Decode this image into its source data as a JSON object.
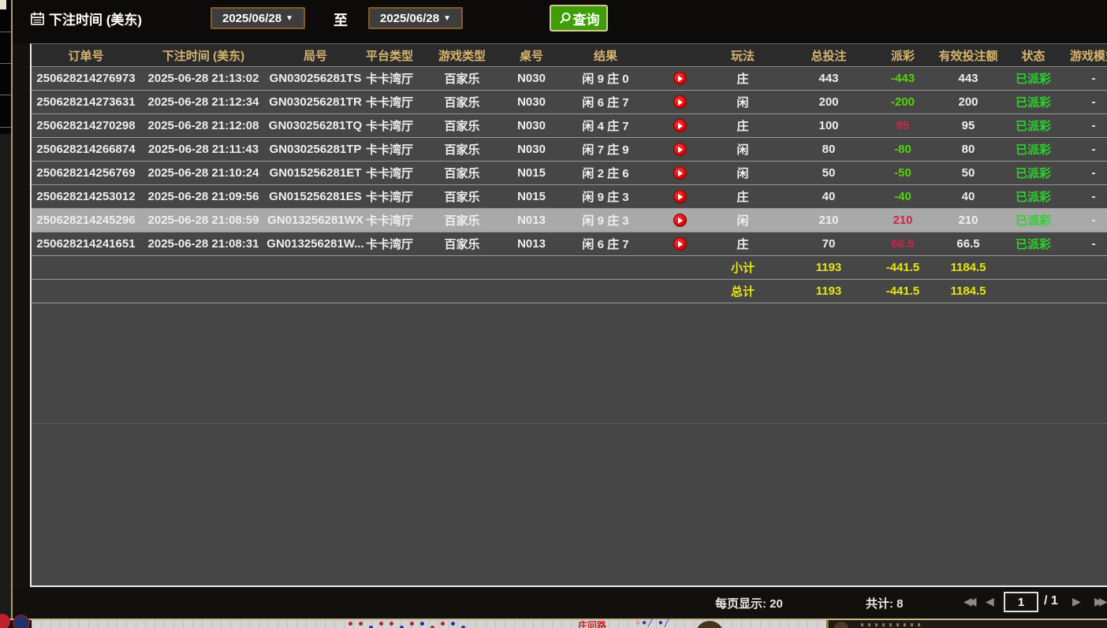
{
  "filter_bar": {
    "title": "下注时间 (美东)",
    "date_from": "2025/06/28",
    "date_to": "2025/06/28",
    "to_label": "至",
    "query_label": "查询"
  },
  "table": {
    "columns": [
      "订单号",
      "下注时间 (美东)",
      "局号",
      "平台类型",
      "游戏类型",
      "桌号",
      "结果",
      "",
      "玩法",
      "总投注",
      "派彩",
      "有效投注额",
      "状态",
      "游戏模式"
    ],
    "rows": [
      {
        "order_id": "250628214276973",
        "bet_time": "2025-06-28 21:13:02",
        "round_id": "GN030256281TS",
        "platform": "卡卡湾厅",
        "game_type": "百家乐",
        "table_no": "N030",
        "result": "闲 9 庄 0",
        "play": "庄",
        "total_bet": "443",
        "payout": "-443",
        "payout_sign": "neg",
        "valid_bet": "443",
        "status": "已派彩",
        "game_mode": "-",
        "selected": false
      },
      {
        "order_id": "250628214273631",
        "bet_time": "2025-06-28 21:12:34",
        "round_id": "GN030256281TR",
        "platform": "卡卡湾厅",
        "game_type": "百家乐",
        "table_no": "N030",
        "result": "闲 6 庄 7",
        "play": "闲",
        "total_bet": "200",
        "payout": "-200",
        "payout_sign": "neg",
        "valid_bet": "200",
        "status": "已派彩",
        "game_mode": "-",
        "selected": false
      },
      {
        "order_id": "250628214270298",
        "bet_time": "2025-06-28 21:12:08",
        "round_id": "GN030256281TQ",
        "platform": "卡卡湾厅",
        "game_type": "百家乐",
        "table_no": "N030",
        "result": "闲 4 庄 7",
        "play": "庄",
        "total_bet": "100",
        "payout": "95",
        "payout_sign": "pos",
        "valid_bet": "95",
        "status": "已派彩",
        "game_mode": "-",
        "selected": false
      },
      {
        "order_id": "250628214266874",
        "bet_time": "2025-06-28 21:11:43",
        "round_id": "GN030256281TP",
        "platform": "卡卡湾厅",
        "game_type": "百家乐",
        "table_no": "N030",
        "result": "闲 7 庄 9",
        "play": "闲",
        "total_bet": "80",
        "payout": "-80",
        "payout_sign": "neg",
        "valid_bet": "80",
        "status": "已派彩",
        "game_mode": "-",
        "selected": false
      },
      {
        "order_id": "250628214256769",
        "bet_time": "2025-06-28 21:10:24",
        "round_id": "GN015256281ET",
        "platform": "卡卡湾厅",
        "game_type": "百家乐",
        "table_no": "N015",
        "result": "闲 2 庄 6",
        "play": "闲",
        "total_bet": "50",
        "payout": "-50",
        "payout_sign": "neg",
        "valid_bet": "50",
        "status": "已派彩",
        "game_mode": "-",
        "selected": false
      },
      {
        "order_id": "250628214253012",
        "bet_time": "2025-06-28 21:09:56",
        "round_id": "GN015256281ES",
        "platform": "卡卡湾厅",
        "game_type": "百家乐",
        "table_no": "N015",
        "result": "闲 9 庄 3",
        "play": "庄",
        "total_bet": "40",
        "payout": "-40",
        "payout_sign": "neg",
        "valid_bet": "40",
        "status": "已派彩",
        "game_mode": "-",
        "selected": false
      },
      {
        "order_id": "250628214245296",
        "bet_time": "2025-06-28 21:08:59",
        "round_id": "GN013256281WX",
        "platform": "卡卡湾厅",
        "game_type": "百家乐",
        "table_no": "N013",
        "result": "闲 9 庄 3",
        "play": "闲",
        "total_bet": "210",
        "payout": "210",
        "payout_sign": "pos",
        "valid_bet": "210",
        "status": "已派彩",
        "game_mode": "-",
        "selected": true
      },
      {
        "order_id": "250628214241651",
        "bet_time": "2025-06-28 21:08:31",
        "round_id": "GN013256281W...",
        "platform": "卡卡湾厅",
        "game_type": "百家乐",
        "table_no": "N013",
        "result": "闲 6 庄 7",
        "play": "庄",
        "total_bet": "70",
        "payout": "66.5",
        "payout_sign": "pos",
        "valid_bet": "66.5",
        "status": "已派彩",
        "game_mode": "-",
        "selected": false
      }
    ],
    "subtotal": {
      "label": "小计",
      "total_bet": "1193",
      "payout": "-441.5",
      "valid_bet": "1184.5"
    },
    "total": {
      "label": "总计",
      "total_bet": "1193",
      "payout": "-441.5",
      "valid_bet": "1184.5"
    }
  },
  "pagination": {
    "per_page_label": "每页显示: 20",
    "total_label": "共计: 8",
    "page_input": "1",
    "page_total": "/  1"
  },
  "underlying": {
    "road_label": "庄问路",
    "road_symbols": "○●╱ ●╱"
  },
  "colors": {
    "header_gold": "#d7b56d",
    "status_green": "#2bd32b",
    "payout_negative_green": "#52d407",
    "payout_positive_red": "#cf2449",
    "totals_yellow": "#e6e613",
    "query_button_green": "#3f9e07",
    "select_border_brown": "#875a1e",
    "row_gray": "#464646",
    "selected_row_gray": "#a9a9a9"
  }
}
